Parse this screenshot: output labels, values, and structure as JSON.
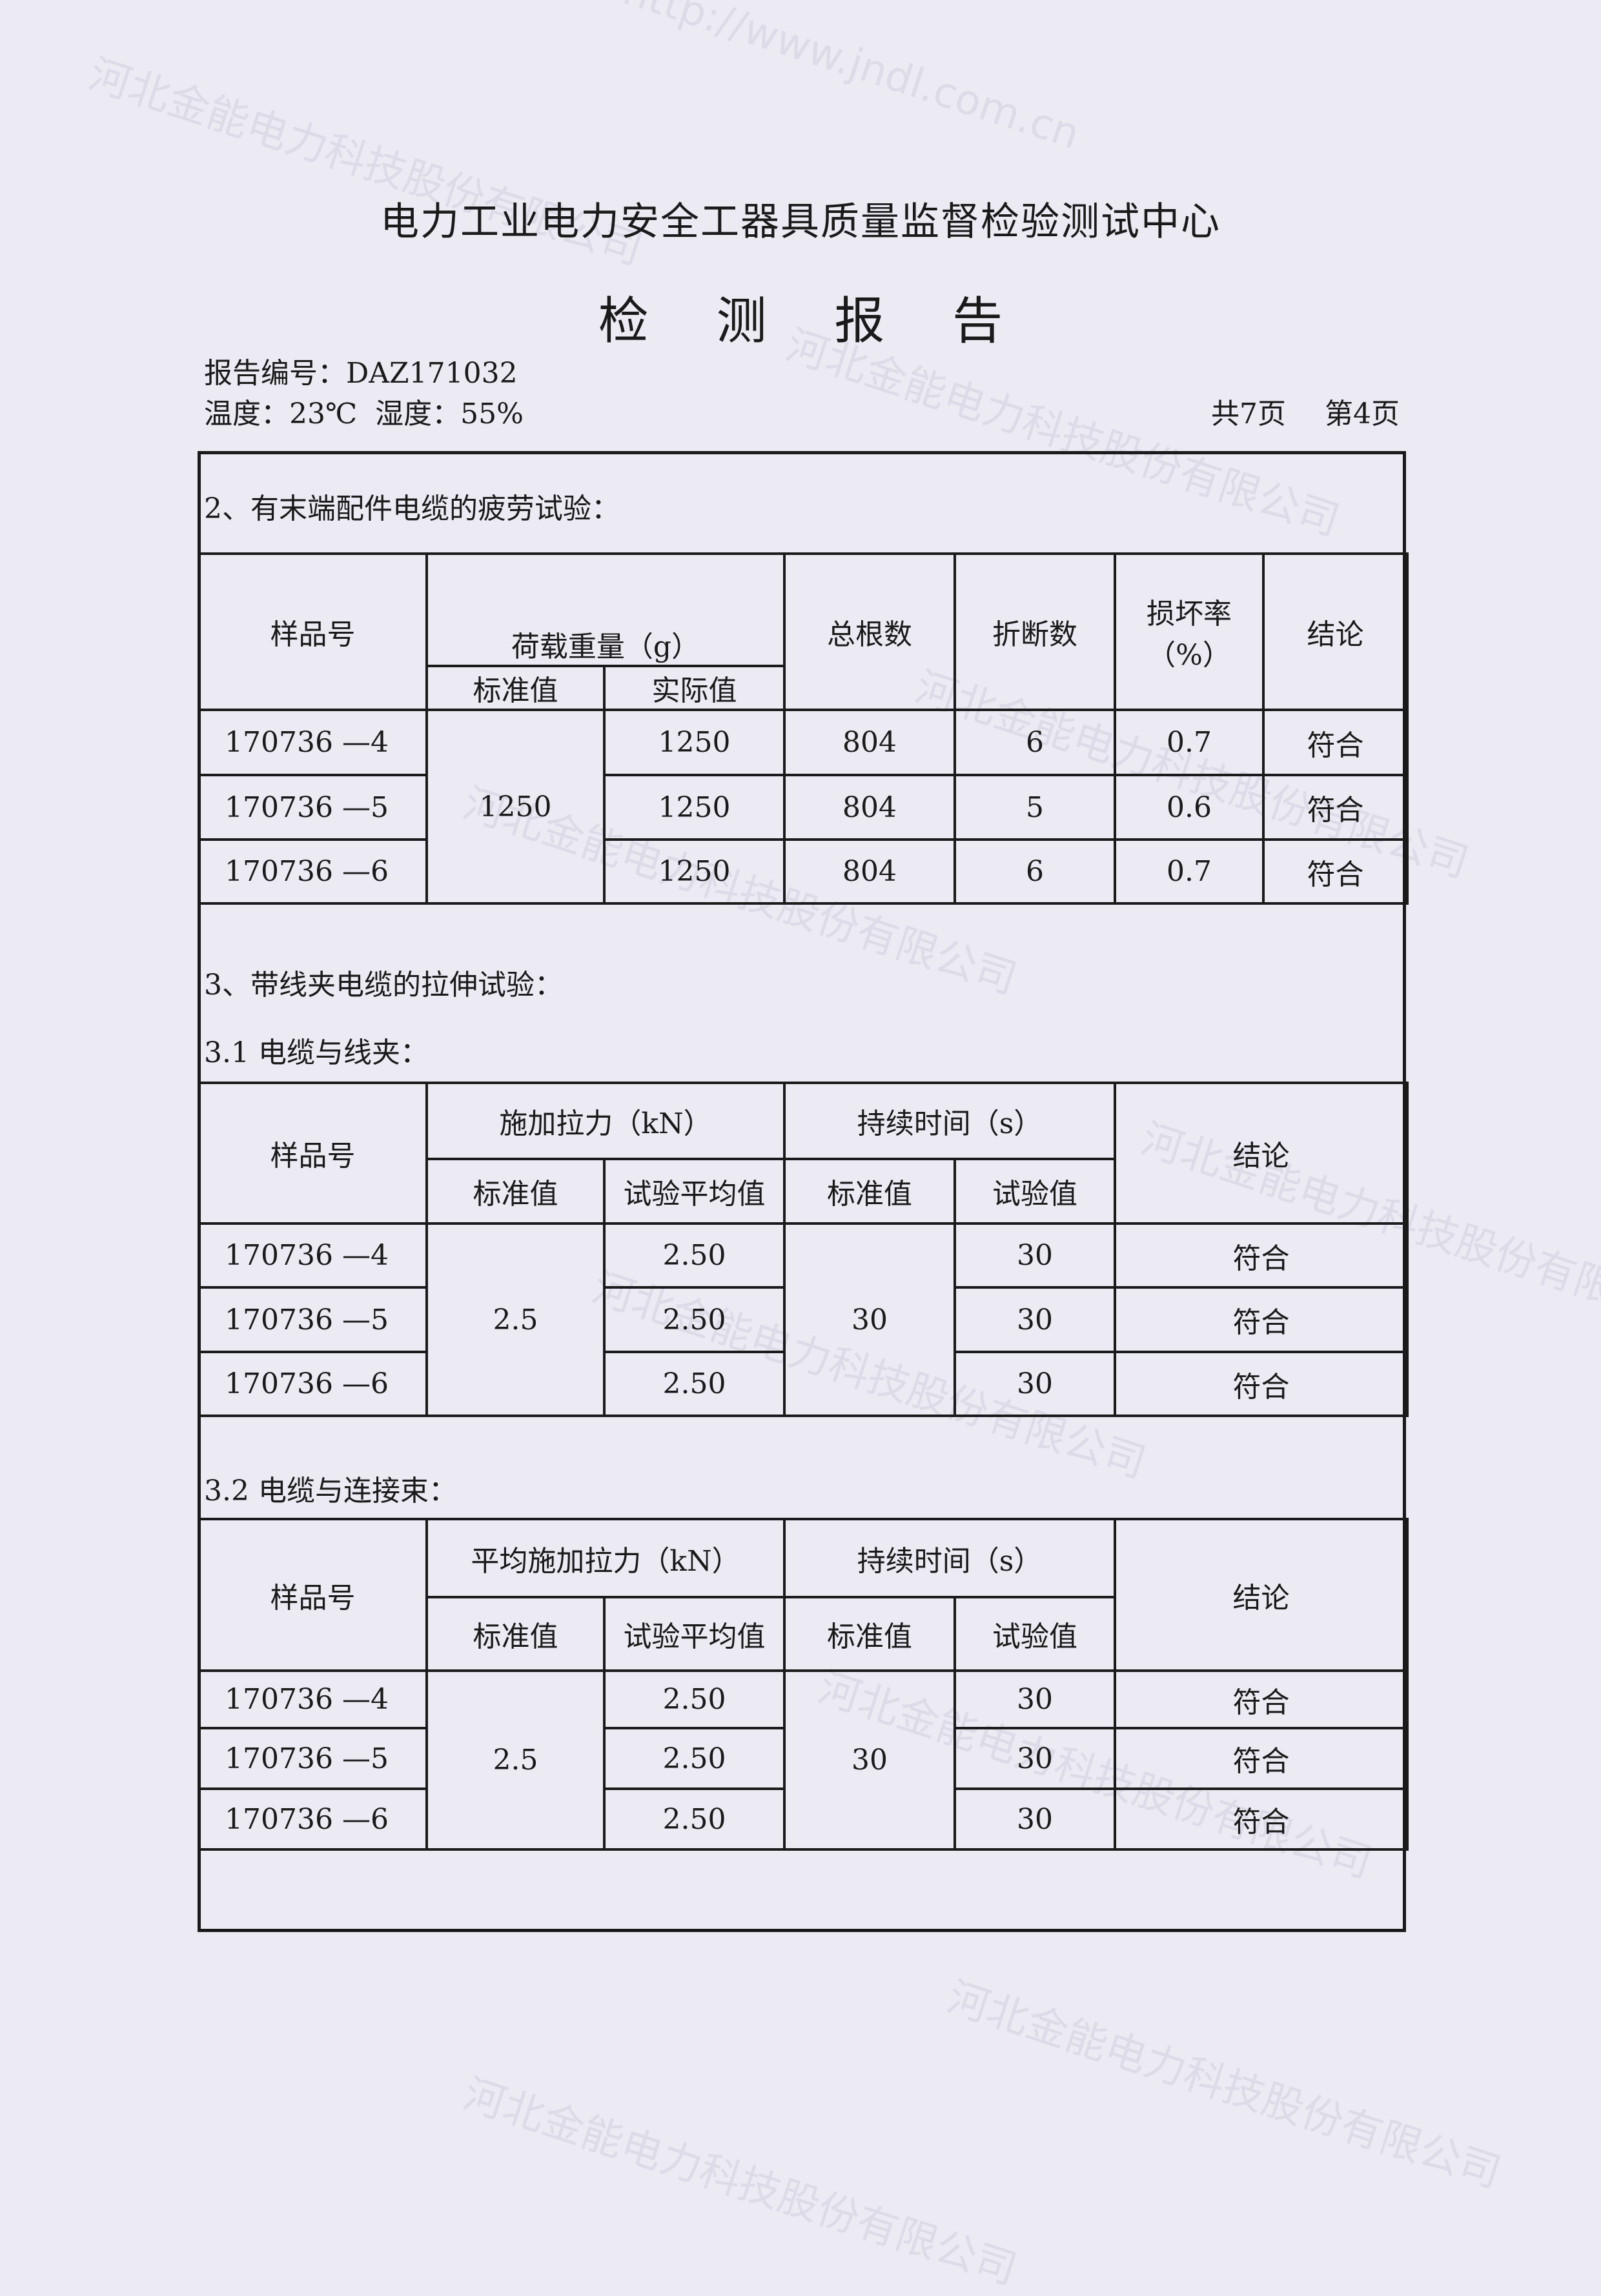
{
  "header": {
    "org": "电力工业电力安全工器具质量监督检验测试中心",
    "title": "检 测 报 告",
    "report_no": "报告编号：DAZ171032",
    "env": "温度：23℃  湿度：55%",
    "total_pages": "共7页",
    "page": "第4页"
  },
  "watermark": {
    "company": "河北金能电力科技股份有限公司",
    "url": "http://www.jndl.com.cn"
  },
  "section2": {
    "title": "2、有末端配件电缆的疲劳试验：",
    "headers": {
      "sample": "样品号",
      "load": "荷载重量（g）",
      "std": "标准值",
      "actual": "实际值",
      "total": "总根数",
      "broken": "折断数",
      "rate": "损坏率（%）",
      "result": "结论"
    },
    "std_value": "1250",
    "rows": [
      {
        "sample": "170736 —4",
        "actual": "1250",
        "total": "804",
        "broken": "6",
        "rate": "0.7",
        "result": "符合"
      },
      {
        "sample": "170736 —5",
        "actual": "1250",
        "total": "804",
        "broken": "5",
        "rate": "0.6",
        "result": "符合"
      },
      {
        "sample": "170736 —6",
        "actual": "1250",
        "total": "804",
        "broken": "6",
        "rate": "0.7",
        "result": "符合"
      }
    ]
  },
  "section3": {
    "title": "3、带线夹电缆的拉伸试验：",
    "sub1": {
      "title": "3.1 电缆与线夹：",
      "headers": {
        "sample": "样品号",
        "force": "施加拉力（kN）",
        "std": "标准值",
        "avg": "试验平均值",
        "time": "持续时间（s）",
        "time_std": "标准值",
        "time_test": "试验值",
        "result": "结论"
      },
      "force_std": "2.5",
      "time_std_value": "30",
      "rows": [
        {
          "sample": "170736 —4",
          "avg": "2.50",
          "test": "30",
          "result": "符合"
        },
        {
          "sample": "170736 —5",
          "avg": "2.50",
          "test": "30",
          "result": "符合"
        },
        {
          "sample": "170736 —6",
          "avg": "2.50",
          "test": "30",
          "result": "符合"
        }
      ]
    },
    "sub2": {
      "title": "3.2 电缆与连接束：",
      "headers": {
        "sample": "样品号",
        "force": "平均施加拉力（kN）",
        "std": "标准值",
        "avg": "试验平均值",
        "time": "持续时间（s）",
        "time_std": "标准值",
        "time_test": "试验值",
        "result": "结论"
      },
      "force_std": "2.5",
      "time_std_value": "30",
      "rows": [
        {
          "sample": "170736 —4",
          "avg": "2.50",
          "test": "30",
          "result": "符合"
        },
        {
          "sample": "170736 —5",
          "avg": "2.50",
          "test": "30",
          "result": "符合"
        },
        {
          "sample": "170736 —6",
          "avg": "2.50",
          "test": "30",
          "result": "符合"
        }
      ]
    }
  }
}
